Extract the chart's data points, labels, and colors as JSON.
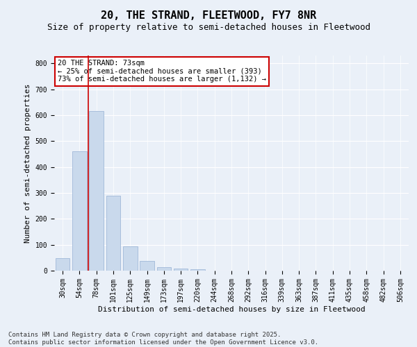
{
  "title": "20, THE STRAND, FLEETWOOD, FY7 8NR",
  "subtitle": "Size of property relative to semi-detached houses in Fleetwood",
  "xlabel": "Distribution of semi-detached houses by size in Fleetwood",
  "ylabel": "Number of semi-detached properties",
  "categories": [
    "30sqm",
    "54sqm",
    "78sqm",
    "101sqm",
    "125sqm",
    "149sqm",
    "173sqm",
    "197sqm",
    "220sqm",
    "244sqm",
    "268sqm",
    "292sqm",
    "316sqm",
    "339sqm",
    "363sqm",
    "387sqm",
    "411sqm",
    "435sqm",
    "458sqm",
    "482sqm",
    "506sqm"
  ],
  "values": [
    47,
    460,
    617,
    288,
    93,
    37,
    13,
    8,
    5,
    0,
    0,
    0,
    0,
    0,
    0,
    0,
    0,
    0,
    0,
    0,
    0
  ],
  "bar_color": "#c9d9ec",
  "bar_edge_color": "#a0b8d8",
  "background_color": "#eaf0f8",
  "grid_color": "#ffffff",
  "vline_x": 1.5,
  "vline_color": "#cc0000",
  "annotation_text": "20 THE STRAND: 73sqm\n← 25% of semi-detached houses are smaller (393)\n73% of semi-detached houses are larger (1,132) →",
  "annotation_box_color": "#cc0000",
  "ylim": [
    0,
    830
  ],
  "yticks": [
    0,
    100,
    200,
    300,
    400,
    500,
    600,
    700,
    800
  ],
  "footnote": "Contains HM Land Registry data © Crown copyright and database right 2025.\nContains public sector information licensed under the Open Government Licence v3.0.",
  "title_fontsize": 11,
  "subtitle_fontsize": 9,
  "label_fontsize": 8,
  "tick_fontsize": 7,
  "annotation_fontsize": 7.5,
  "footnote_fontsize": 6.5
}
